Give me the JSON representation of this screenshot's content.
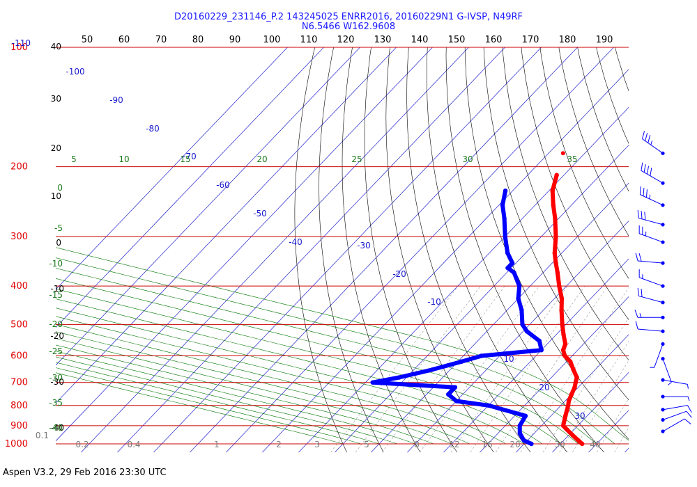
{
  "header": {
    "line1": "D20160229_231146_P.2 143245025 ENRR2016, 20160229N1 G-IVSP, N49RF",
    "line2": "N6.5466 W162.9608"
  },
  "footer": {
    "text": "Aspen V3.2, 29 Feb 2016  23:30 UTC"
  },
  "chart_data": {
    "type": "skew-t",
    "top_ticks": [
      "50",
      "60",
      "70",
      "80",
      "90",
      "100",
      "110",
      "120",
      "130",
      "140",
      "150",
      "160",
      "170",
      "180",
      "190"
    ],
    "pressure_levels": [
      100,
      200,
      300,
      400,
      500,
      600,
      700,
      800,
      900,
      1000
    ],
    "pressure_labels": [
      "100",
      "200",
      "300",
      "400",
      "500",
      "600",
      "700",
      "800",
      "900",
      "1000"
    ],
    "left_labels": [
      {
        "text": "-110",
        "cls": "iso-lab"
      },
      {
        "text": "40",
        "cls": "th-lab"
      },
      {
        "text": "30",
        "cls": "th-lab"
      },
      {
        "text": "20",
        "cls": "th-lab"
      },
      {
        "text": "10",
        "cls": "th-lab"
      },
      {
        "text": "0",
        "cls": "th-lab"
      },
      {
        "text": "-10",
        "cls": "th-lab"
      },
      {
        "text": "-20",
        "cls": "th-lab"
      },
      {
        "text": "-30",
        "cls": "th-lab"
      },
      {
        "text": "-40",
        "cls": "th-lab"
      },
      {
        "text": "0.1",
        "cls": "mr-lab"
      }
    ],
    "left_green_labels": [
      "0",
      "-5",
      "-10",
      "-15",
      "-20",
      "-25",
      "-30",
      "-35",
      "-40"
    ],
    "isotherm_labels": [
      "-100",
      "-90",
      "-80",
      "-70",
      "-60",
      "-50",
      "-40",
      "-30",
      "-20",
      "-10",
      "10",
      "20",
      "30"
    ],
    "adiabat_labels": [
      "5",
      "10",
      "15",
      "20",
      "25",
      "30",
      "35"
    ],
    "mixing_ratio_labels": [
      "0.2",
      "0.4",
      "1",
      "2",
      "3",
      "5",
      "8",
      "12",
      "16",
      "20",
      "30",
      "40"
    ],
    "temperature": [
      {
        "p": 210,
        "t": -52
      },
      {
        "p": 230,
        "t": -49
      },
      {
        "p": 250,
        "t": -45
      },
      {
        "p": 270,
        "t": -41
      },
      {
        "p": 300,
        "t": -36
      },
      {
        "p": 330,
        "t": -32
      },
      {
        "p": 350,
        "t": -29
      },
      {
        "p": 370,
        "t": -26
      },
      {
        "p": 400,
        "t": -22
      },
      {
        "p": 430,
        "t": -18
      },
      {
        "p": 460,
        "t": -15
      },
      {
        "p": 500,
        "t": -11
      },
      {
        "p": 530,
        "t": -8
      },
      {
        "p": 560,
        "t": -5
      },
      {
        "p": 580,
        "t": -4
      },
      {
        "p": 600,
        "t": -2
      },
      {
        "p": 620,
        "t": 1
      },
      {
        "p": 650,
        "t": 4
      },
      {
        "p": 680,
        "t": 7
      },
      {
        "p": 700,
        "t": 8
      },
      {
        "p": 720,
        "t": 9
      },
      {
        "p": 750,
        "t": 10
      },
      {
        "p": 780,
        "t": 11
      },
      {
        "p": 800,
        "t": 12
      },
      {
        "p": 850,
        "t": 14
      },
      {
        "p": 900,
        "t": 16
      },
      {
        "p": 920,
        "t": 18
      },
      {
        "p": 950,
        "t": 21
      },
      {
        "p": 980,
        "t": 24
      },
      {
        "p": 1000,
        "t": 26
      }
    ],
    "dewpoint": [
      {
        "p": 230,
        "t": -62
      },
      {
        "p": 250,
        "t": -59
      },
      {
        "p": 270,
        "t": -55
      },
      {
        "p": 300,
        "t": -50
      },
      {
        "p": 330,
        "t": -45
      },
      {
        "p": 350,
        "t": -41
      },
      {
        "p": 360,
        "t": -41
      },
      {
        "p": 370,
        "t": -38
      },
      {
        "p": 400,
        "t": -33
      },
      {
        "p": 430,
        "t": -30
      },
      {
        "p": 460,
        "t": -26
      },
      {
        "p": 500,
        "t": -22
      },
      {
        "p": 520,
        "t": -19
      },
      {
        "p": 550,
        "t": -13
      },
      {
        "p": 580,
        "t": -10
      },
      {
        "p": 600,
        "t": -25
      },
      {
        "p": 620,
        "t": -29
      },
      {
        "p": 650,
        "t": -35
      },
      {
        "p": 680,
        "t": -42
      },
      {
        "p": 700,
        "t": -48
      },
      {
        "p": 720,
        "t": -24
      },
      {
        "p": 750,
        "t": -24
      },
      {
        "p": 780,
        "t": -20
      },
      {
        "p": 800,
        "t": -10
      },
      {
        "p": 850,
        "t": 3
      },
      {
        "p": 900,
        "t": 4
      },
      {
        "p": 940,
        "t": 6
      },
      {
        "p": 980,
        "t": 9
      },
      {
        "p": 1000,
        "t": 12
      }
    ],
    "isolated_point": {
      "p": 185,
      "t": -56
    },
    "wind_barbs": [
      {
        "p": 185,
        "dir": 305,
        "spd": 35
      },
      {
        "p": 220,
        "dir": 300,
        "spd": 40
      },
      {
        "p": 250,
        "dir": 295,
        "spd": 35
      },
      {
        "p": 280,
        "dir": 285,
        "spd": 30
      },
      {
        "p": 310,
        "dir": 290,
        "spd": 25
      },
      {
        "p": 350,
        "dir": 275,
        "spd": 20
      },
      {
        "p": 400,
        "dir": 290,
        "spd": 15
      },
      {
        "p": 440,
        "dir": 285,
        "spd": 20
      },
      {
        "p": 480,
        "dir": 270,
        "spd": 15
      },
      {
        "p": 520,
        "dir": 275,
        "spd": 10
      },
      {
        "p": 560,
        "dir": 200,
        "spd": 5
      },
      {
        "p": 610,
        "dir": 160,
        "spd": 5
      },
      {
        "p": 690,
        "dir": 100,
        "spd": 5
      },
      {
        "p": 760,
        "dir": 90,
        "spd": 5
      },
      {
        "p": 820,
        "dir": 80,
        "spd": 10
      },
      {
        "p": 870,
        "dir": 70,
        "spd": 10
      },
      {
        "p": 930,
        "dir": 60,
        "spd": 10
      }
    ],
    "colors": {
      "temperature": "#ff0000",
      "dewpoint": "#0000ff",
      "isobar": "#cc0000",
      "isotherm": "#2222cc",
      "dry_adiabat": "#000000",
      "moist_adiabat": "#007700",
      "mixing_ratio": "#999999"
    }
  }
}
